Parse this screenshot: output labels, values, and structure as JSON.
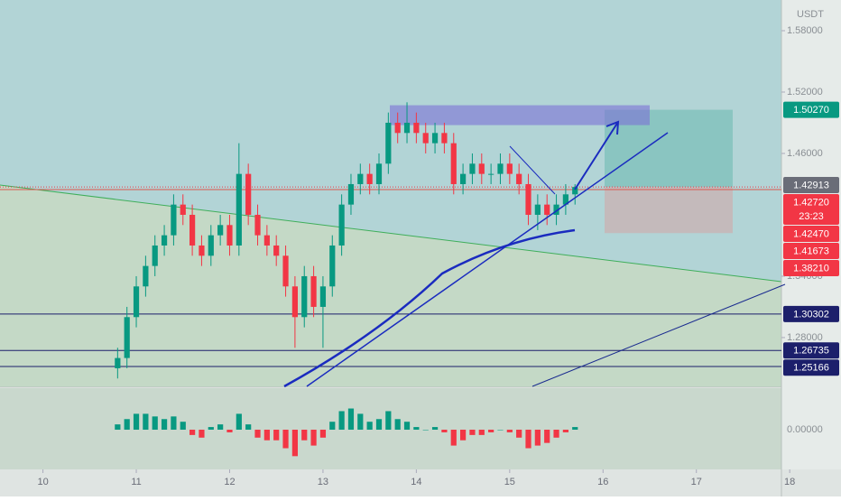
{
  "chart_data": {
    "type": "candlestick",
    "currency": "USDT",
    "x": [
      10.8,
      10.9,
      11.0,
      11.1,
      11.2,
      11.3,
      11.4,
      11.5,
      11.6,
      11.7,
      11.8,
      11.9,
      12.0,
      12.1,
      12.2,
      12.3,
      12.4,
      12.5,
      12.6,
      12.7,
      12.8,
      12.9,
      13.0,
      13.1,
      13.2,
      13.3,
      13.4,
      13.5,
      13.6,
      13.7,
      13.8,
      13.9,
      14.0,
      14.1,
      14.2,
      14.3,
      14.4,
      14.5,
      14.6,
      14.7,
      14.8,
      14.9,
      15.0,
      15.1,
      15.2,
      15.3,
      15.4,
      15.5,
      15.6,
      15.7
    ],
    "open": [
      1.25,
      1.26,
      1.3,
      1.33,
      1.35,
      1.37,
      1.38,
      1.41,
      1.4,
      1.37,
      1.36,
      1.38,
      1.39,
      1.37,
      1.44,
      1.4,
      1.38,
      1.37,
      1.36,
      1.33,
      1.3,
      1.34,
      1.31,
      1.33,
      1.37,
      1.41,
      1.43,
      1.44,
      1.43,
      1.45,
      1.49,
      1.48,
      1.49,
      1.48,
      1.47,
      1.48,
      1.47,
      1.43,
      1.44,
      1.45,
      1.44,
      1.44,
      1.45,
      1.44,
      1.43,
      1.4,
      1.41,
      1.4,
      1.41,
      1.42
    ],
    "high": [
      1.27,
      1.31,
      1.34,
      1.36,
      1.38,
      1.39,
      1.42,
      1.42,
      1.41,
      1.38,
      1.39,
      1.4,
      1.4,
      1.47,
      1.45,
      1.41,
      1.39,
      1.38,
      1.37,
      1.34,
      1.35,
      1.35,
      1.34,
      1.38,
      1.42,
      1.44,
      1.45,
      1.45,
      1.46,
      1.5,
      1.5,
      1.51,
      1.5,
      1.49,
      1.49,
      1.49,
      1.48,
      1.45,
      1.46,
      1.46,
      1.45,
      1.46,
      1.46,
      1.45,
      1.44,
      1.42,
      1.42,
      1.42,
      1.43,
      1.43
    ],
    "low": [
      1.24,
      1.25,
      1.29,
      1.32,
      1.34,
      1.36,
      1.37,
      1.39,
      1.36,
      1.35,
      1.35,
      1.37,
      1.36,
      1.36,
      1.39,
      1.37,
      1.36,
      1.35,
      1.32,
      1.27,
      1.29,
      1.3,
      1.27,
      1.32,
      1.36,
      1.4,
      1.42,
      1.42,
      1.42,
      1.44,
      1.47,
      1.47,
      1.47,
      1.46,
      1.46,
      1.46,
      1.42,
      1.42,
      1.43,
      1.43,
      1.43,
      1.43,
      1.43,
      1.42,
      1.39,
      1.385,
      1.39,
      1.39,
      1.4,
      1.41
    ],
    "close": [
      1.26,
      1.3,
      1.33,
      1.35,
      1.37,
      1.38,
      1.41,
      1.4,
      1.37,
      1.36,
      1.38,
      1.39,
      1.37,
      1.44,
      1.4,
      1.38,
      1.37,
      1.36,
      1.33,
      1.3,
      1.34,
      1.31,
      1.33,
      1.37,
      1.41,
      1.43,
      1.44,
      1.43,
      1.45,
      1.49,
      1.48,
      1.49,
      1.48,
      1.47,
      1.48,
      1.47,
      1.43,
      1.44,
      1.45,
      1.44,
      1.44,
      1.45,
      1.44,
      1.43,
      1.4,
      1.41,
      1.4,
      1.41,
      1.42,
      1.4272
    ],
    "up_color": "#089981",
    "down_color": "#f23645",
    "xlim": [
      9.54,
      18.53
    ],
    "xticks": [
      10,
      11,
      12,
      13,
      14,
      15,
      16,
      17,
      18
    ],
    "ylim": [
      1.2323,
      1.61
    ],
    "yticks": [
      {
        "value": 1.28,
        "label": "1.28000"
      },
      {
        "value": 1.34,
        "label": "1.34000"
      },
      {
        "value": 1.46,
        "label": "1.46000"
      },
      {
        "value": 1.52,
        "label": "1.52000"
      },
      {
        "value": 1.58,
        "label": "1.58000"
      }
    ],
    "price_labels": [
      {
        "value": 1.5027,
        "label": "1.50270",
        "color": "#089981"
      },
      {
        "value": 1.42913,
        "label": "1.42913",
        "color": "#6a6d78"
      },
      {
        "value": 1.4272,
        "label": "1.42720",
        "color": "#f23645",
        "countdown": "23:23"
      },
      {
        "value": 1.4247,
        "label": "1.42470",
        "color": "#f23645"
      },
      {
        "value": 1.41673,
        "label": "1.41673",
        "color": "#f23645"
      },
      {
        "value": 1.3821,
        "label": "1.38210",
        "color": "#f23645"
      },
      {
        "value": 1.30302,
        "label": "1.30302",
        "color": "#1c1f6b"
      },
      {
        "value": 1.26735,
        "label": "1.26735",
        "color": "#1c1f6b"
      },
      {
        "value": 1.25166,
        "label": "1.25166",
        "color": "#1c1f6b"
      }
    ],
    "macd": {
      "values": [
        0.002,
        0.004,
        0.006,
        0.006,
        0.005,
        0.004,
        0.005,
        0.003,
        -0.002,
        -0.003,
        0.001,
        0.002,
        -0.001,
        0.006,
        0.002,
        -0.003,
        -0.004,
        -0.004,
        -0.007,
        -0.01,
        -0.004,
        -0.006,
        -0.003,
        0.003,
        0.007,
        0.008,
        0.006,
        0.003,
        0.004,
        0.007,
        0.004,
        0.003,
        0.001,
        0.0,
        0.001,
        -0.001,
        -0.006,
        -0.004,
        -0.002,
        -0.002,
        -0.001,
        0.0,
        -0.001,
        -0.003,
        -0.007,
        -0.006,
        -0.005,
        -0.003,
        -0.001,
        0.001
      ],
      "ylim": [
        -0.015,
        0.015
      ],
      "yticks": [
        {
          "value": 0,
          "label": "0.00000"
        }
      ],
      "up_color": "#089981",
      "down_color": "#f23645"
    }
  }
}
